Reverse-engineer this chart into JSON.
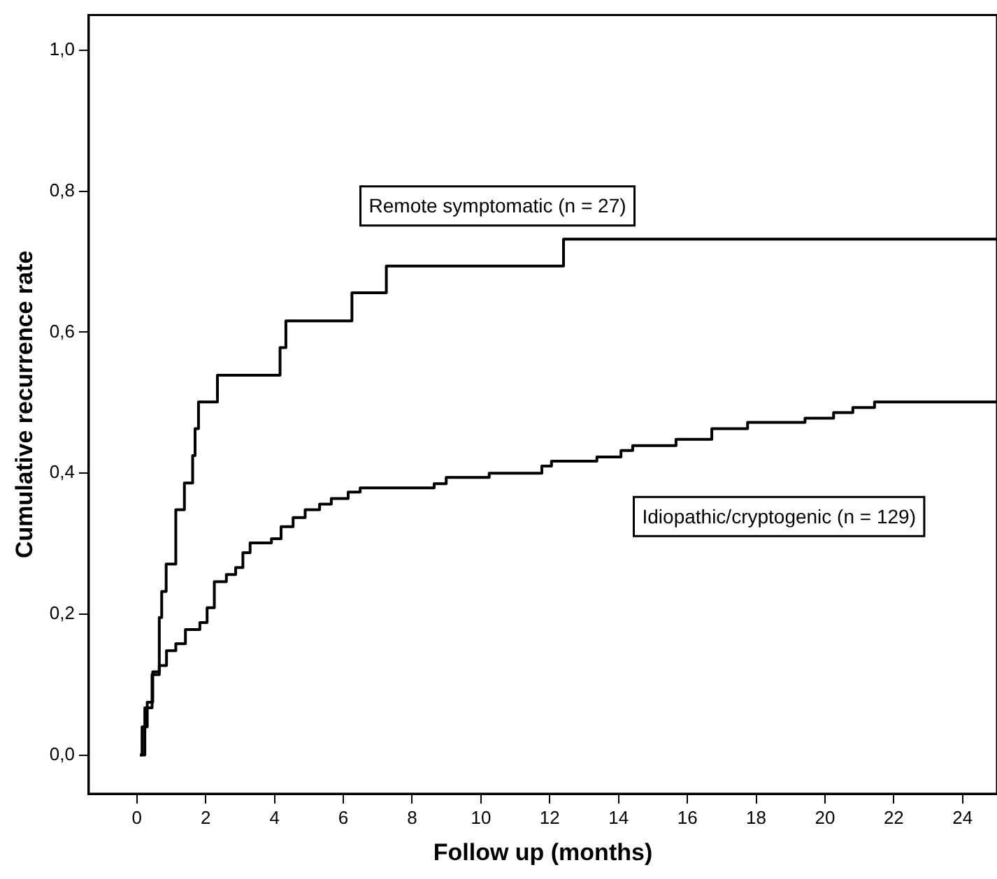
{
  "chart_data": {
    "type": "step",
    "xlabel": "Follow up (months)",
    "ylabel": "Cumulative recurrence rate",
    "xlim": [
      -1.4,
      25
    ],
    "ylim": [
      -0.055,
      1.05
    ],
    "xticks": [
      0,
      2,
      4,
      6,
      8,
      10,
      12,
      14,
      16,
      18,
      20,
      22,
      24
    ],
    "yticks": [
      {
        "value": 0,
        "label": "0,0"
      },
      {
        "value": 0.2,
        "label": "0,2"
      },
      {
        "value": 0.4,
        "label": "0,4"
      },
      {
        "value": 0.6,
        "label": "0,6"
      },
      {
        "value": 0.8,
        "label": "0,8"
      },
      {
        "value": 1,
        "label": "1,0"
      }
    ],
    "grid": false,
    "legend": false,
    "marker": "none",
    "line_style": "solid",
    "series": [
      {
        "name": "Remote symptomatic (n = 27)",
        "color": "#000000",
        "x": [
          0.09,
          0.15,
          0.3,
          0.46,
          0.65,
          0.72,
          0.85,
          1.13,
          1.38,
          1.62,
          1.69,
          1.79,
          2.34,
          4.16,
          4.33,
          6.25,
          7.25,
          12.4,
          25
        ],
        "values": [
          0,
          0.04,
          0.075,
          0.118,
          0.195,
          0.232,
          0.271,
          0.348,
          0.386,
          0.425,
          0.463,
          0.501,
          0.539,
          0.578,
          0.616,
          0.656,
          0.694,
          0.732,
          0.732
        ]
      },
      {
        "name": "Idiopathic/cryptogenic (n = 129)",
        "color": "#000000",
        "x": [
          0.09,
          0.23,
          0.44,
          0.65,
          0.86,
          1.13,
          1.41,
          1.83,
          2.04,
          2.25,
          2.6,
          2.87,
          3.08,
          3.29,
          3.91,
          4.19,
          4.54,
          4.89,
          5.31,
          5.65,
          6.14,
          6.49,
          8.64,
          8.99,
          10.24,
          11.77,
          12.05,
          13.37,
          14.07,
          14.41,
          15.67,
          16.71,
          17.75,
          19.42,
          20.25,
          20.81,
          21.44,
          25
        ],
        "values": [
          0,
          0.067,
          0.114,
          0.127,
          0.148,
          0.158,
          0.178,
          0.188,
          0.209,
          0.246,
          0.256,
          0.266,
          0.287,
          0.301,
          0.307,
          0.324,
          0.337,
          0.348,
          0.356,
          0.364,
          0.373,
          0.379,
          0.385,
          0.394,
          0.4,
          0.41,
          0.417,
          0.423,
          0.432,
          0.439,
          0.448,
          0.463,
          0.472,
          0.478,
          0.486,
          0.493,
          0.501,
          0.501
        ]
      }
    ]
  }
}
